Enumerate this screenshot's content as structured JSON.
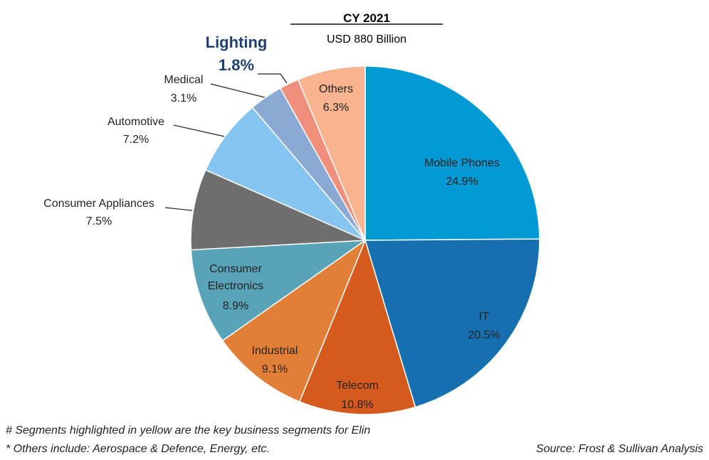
{
  "chart_data": {
    "type": "pie",
    "title": "CY 2021",
    "subtitle": "USD 880 Billion",
    "categories": [
      "Mobile Phones",
      "IT",
      "Telecom",
      "Industrial",
      "Consumer Electronics",
      "Consumer Appliances",
      "Automotive",
      "Medical",
      "Lighting",
      "Others"
    ],
    "values": [
      24.9,
      20.5,
      10.8,
      9.1,
      8.9,
      7.5,
      7.2,
      3.1,
      1.8,
      6.3
    ],
    "value_labels": [
      "24.9%",
      "20.5%",
      "10.8%",
      "9.1%",
      "8.9%",
      "7.5%",
      "7.2%",
      "3.1%",
      "1.8%",
      "6.3%"
    ],
    "colors": [
      "#0099d4",
      "#1670b0",
      "#d55a1e",
      "#e07f35",
      "#59a3b9",
      "#6e6e6e",
      "#86c5ef",
      "#8aaad3",
      "#f0907c",
      "#f7b48e"
    ],
    "footnotes": [
      "# Segments highlighted in yellow are the key business segments for Elin",
      "* Others include: Aerospace & Defence, Energy, etc."
    ],
    "source": "Source: Frost & Sullivan Analysis"
  }
}
